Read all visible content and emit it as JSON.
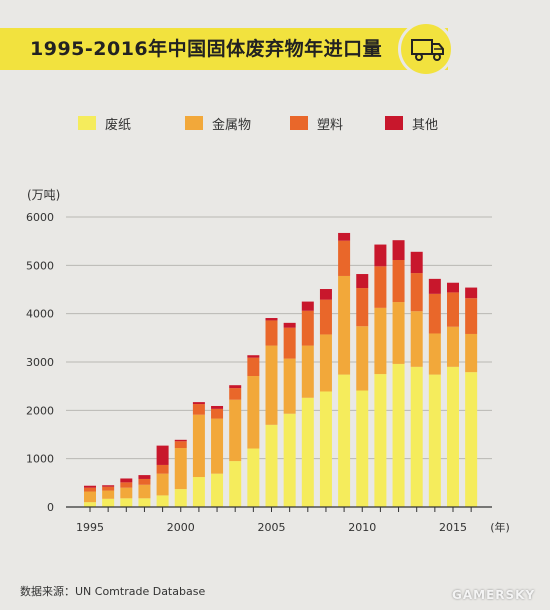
{
  "chart_data": {
    "type": "bar",
    "stacked": true,
    "title": "1995-2016年中国固体废弃物年进口量",
    "unit_label": "(万吨)",
    "xlabel_unit": "(年)",
    "x": [
      1995,
      1996,
      1997,
      1998,
      1999,
      2000,
      2001,
      2002,
      2003,
      2004,
      2005,
      2006,
      2007,
      2008,
      2009,
      2010,
      2011,
      2012,
      2013,
      2014,
      2015,
      2016
    ],
    "x_tick_labels": [
      "1995",
      "2000",
      "2005",
      "2010",
      "2015"
    ],
    "x_tick_years": [
      1995,
      2000,
      2005,
      2010,
      2015
    ],
    "y_ticks": [
      0,
      1000,
      2000,
      3000,
      4000,
      5000,
      6000
    ],
    "ylim": [
      0,
      6000
    ],
    "grid": true,
    "legend_position": "top",
    "series": [
      {
        "name": "废纸",
        "color": "#f5ec5c",
        "values": [
          100,
          170,
          180,
          180,
          240,
          370,
          620,
          690,
          950,
          1210,
          1700,
          1930,
          2260,
          2390,
          2740,
          2410,
          2750,
          2960,
          2900,
          2740,
          2900,
          2790
        ]
      },
      {
        "name": "金属物",
        "color": "#f2a83a",
        "values": [
          220,
          170,
          220,
          280,
          450,
          850,
          1290,
          1140,
          1270,
          1500,
          1640,
          1140,
          1080,
          1180,
          2040,
          1330,
          1370,
          1280,
          1150,
          850,
          830,
          790
        ]
      },
      {
        "name": "塑料",
        "color": "#e9672a",
        "values": [
          80,
          80,
          110,
          120,
          180,
          140,
          220,
          200,
          240,
          380,
          520,
          640,
          720,
          720,
          730,
          790,
          860,
          870,
          790,
          820,
          710,
          740
        ]
      },
      {
        "name": "其他",
        "color": "#c8172c",
        "values": [
          40,
          30,
          80,
          80,
          400,
          30,
          40,
          60,
          60,
          50,
          50,
          100,
          190,
          220,
          160,
          290,
          450,
          410,
          440,
          310,
          200,
          220
        ]
      }
    ]
  },
  "source": "数据来源：UN Comtrade Database",
  "watermark": "GAMERSKY",
  "colors": {
    "accent": "#f2e23e",
    "background": "#e9e8e5"
  }
}
